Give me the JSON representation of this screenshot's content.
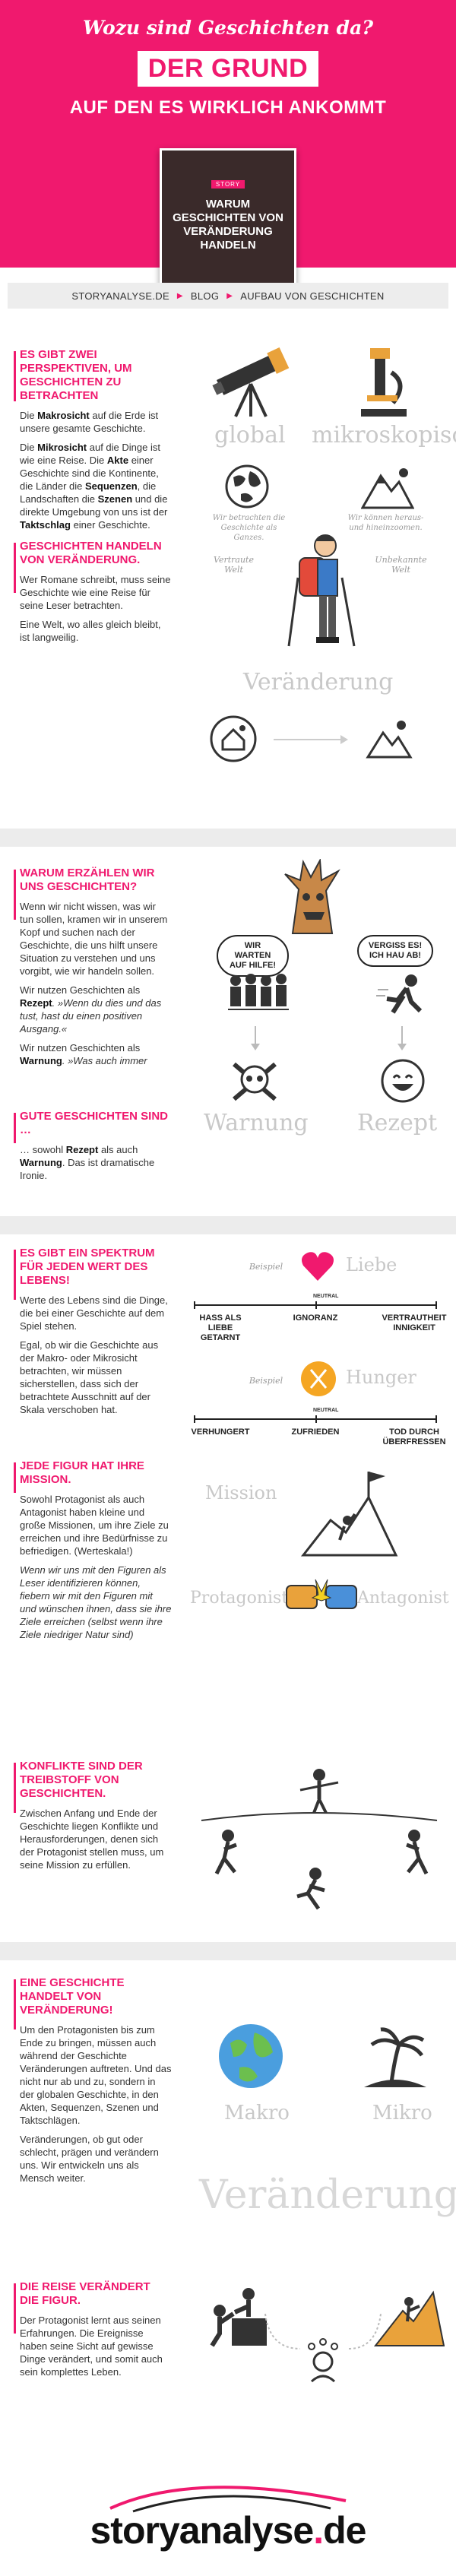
{
  "header": {
    "top_line": "Wozu sind Geschichten da?",
    "box_title": "DER GRUND",
    "subtitle": "AUF DEN ES WIRKLICH ANKOMMT",
    "cover_tag": "STORY",
    "cover_title": "Warum Geschichten von Veränderung handeln",
    "bg_color": "#f0196e"
  },
  "breadcrumb": {
    "items": [
      "STORYANALYSE.DE",
      "BLOG",
      "AUFBAU VON GESCHICHTEN"
    ]
  },
  "sections": {
    "s1": {
      "title": "ES GIBT ZWEI PERSPEKTIVEN, UM GESCHICHTEN ZU BETRACHTEN",
      "p1_a": "Die ",
      "p1_b": "Makrosicht",
      "p1_c": " auf die Erde ist unsere gesamte Geschichte.",
      "p2_a": "Die ",
      "p2_b": "Mikrosicht",
      "p2_c": " auf die Dinge ist wie eine Reise. Die ",
      "p2_d": "Akte",
      "p2_e": " einer Geschichte sind die Kontinente, die Länder die ",
      "p2_f": "Sequenzen",
      "p2_g": ", die Landschaften die ",
      "p2_h": "Szenen",
      "p2_i": " und die direkte Umgebung von uns ist der ",
      "p2_j": "Taktschlag",
      "p2_k": " einer Geschichte.",
      "label_global": "global",
      "label_micro": "mikroskopisch",
      "cap_left": "Wir betrachten die Geschichte als Ganzes.",
      "cap_right": "Wir können heraus- und hineinzoomen."
    },
    "s2": {
      "title": "GESCHICHTEN HANDELN VON VERÄNDERUNG.",
      "p1": "Wer Romane schreibt, muss seine Geschichte wie eine Reise für seine Leser betrachten.",
      "p2": "Eine Welt, wo alles gleich bleibt, ist langweilig.",
      "label_known": "Vertraute Welt",
      "label_unknown": "Unbekannte Welt",
      "label_change": "Veränderung"
    },
    "s3": {
      "title": "WARUM ERZÄHLEN WIR UNS GESCHICHTEN?",
      "p1": "Wenn wir nicht wissen, was wir tun sollen, kramen wir in unserem Kopf und suchen nach der Geschichte, die uns hilft unsere Situation zu verstehen und uns vorgibt, wie wir handeln sollen.",
      "p2_a": "Wir nutzen Geschichten als ",
      "p2_b": "Rezept",
      "p2_c": ". »Wenn du dies und das tust, hast du einen positiven Ausgang.«",
      "p3_a": "Wir nutzen Geschichten als ",
      "p3_b": "Warnung",
      "p3_c": ". »Was auch immer",
      "bubble_left": "WIR WARTEN AUF HILFE!",
      "bubble_right": "VERGISS ES! ICH HAU AB!",
      "label_warn": "Warnung",
      "label_recipe": "Rezept"
    },
    "s4": {
      "title": "GUTE GESCHICHTEN SIND …",
      "p1_a": "… sowohl ",
      "p1_b": "Rezept",
      "p1_c": " als auch ",
      "p1_d": "Warnung",
      "p1_e": ". Das ist dramatische Ironie."
    },
    "s5": {
      "title": "ES GIBT EIN SPEKTRUM FÜR JEDEN WERT DES LEBENS!",
      "p1": "Werte des Lebens sind die Dinge, die bei einer Geschichte auf dem Spiel stehen.",
      "p2": "Egal, ob wir die Geschichte aus der Makro- oder Mikrosicht betrachten, wir müssen sicherstellen, dass sich der betrachtete Ausschnitt auf der Skala verschoben hat.",
      "example": "Beispiel",
      "value_love": "Liebe",
      "value_hunger": "Hunger",
      "neutral": "NEUTRAL",
      "love_left": "HASS ALS LIEBE GETARNT",
      "love_mid": "IGNORANZ",
      "love_right": "VERTRAUTHEIT INNIGKEIT",
      "hunger_left": "VERHUNGERT",
      "hunger_mid": "ZUFRIEDEN",
      "hunger_right": "TOD DURCH ÜBERFRESSEN"
    },
    "s6": {
      "title": "JEDE FIGUR HAT IHRE MISSION.",
      "p1": "Sowohl Protagonist als auch Antagonist haben kleine und große Missionen, um ihre Ziele zu erreichen und ihre Bedürfnisse zu befriedigen. (Werteskala!)",
      "p2": "Wenn wir uns mit den Figuren als Leser identifizieren können, fiebern wir mit den Figuren mit und wünschen ihnen, dass sie ihre Ziele erreichen (selbst wenn ihre Ziele niedriger Natur sind)",
      "label_mission": "Mission",
      "label_protagonist": "Protagonist",
      "label_antagonist": "Antagonist"
    },
    "s7": {
      "title": "KONFLIKTE SIND DER TREIBSTOFF VON GESCHICHTEN.",
      "p1": "Zwischen Anfang und Ende der Geschichte liegen Konflikte und Herausforderungen, denen sich der Protagonist stellen muss, um seine Mission zu erfüllen."
    },
    "s8": {
      "title": "EINE GESCHICHTE HANDELT VON VERÄNDERUNG!",
      "p1": "Um den Protagonisten bis zum Ende zu bringen, müssen auch während der Geschichte Veränderungen auftreten. Und das nicht nur ab und zu, sondern in der globalen Geschichte, in den Akten, Sequenzen, Szenen und Taktschlägen.",
      "p2": "Veränderungen, ob gut oder schlecht, prägen und verändern uns. Wir entwickeln uns als Mensch weiter.",
      "label_makro": "Makro",
      "label_mikro": "Mikro",
      "label_change": "Veränderung"
    },
    "s9": {
      "title": "DIE REISE VERÄNDERT DIE FIGUR.",
      "p1": "Der Protagonist lernt aus seinen Erfahrungen. Die Ereignisse haben seine Sicht auf gewisse Dinge verändert, und somit auch sein komplettes Leben."
    }
  },
  "footer": {
    "logo_main": "storyanalyse",
    "logo_dot": ".",
    "logo_tld": "de"
  }
}
